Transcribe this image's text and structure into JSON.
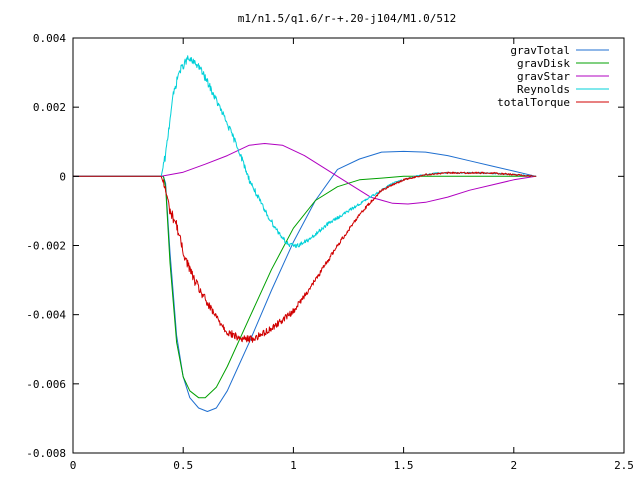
{
  "chart_data": {
    "type": "line",
    "title": "m1/n1.5/q1.6/r-+.20-j104/M1.0/512",
    "xlabel": "",
    "ylabel": "",
    "xlim": [
      0,
      2.5
    ],
    "ylim": [
      -0.008,
      0.004
    ],
    "x_ticks": [
      {
        "value": 0,
        "label": "0"
      },
      {
        "value": 0.5,
        "label": "0.5"
      },
      {
        "value": 1,
        "label": "1"
      },
      {
        "value": 1.5,
        "label": "1.5"
      },
      {
        "value": 2,
        "label": "2"
      },
      {
        "value": 2.5,
        "label": "2.5"
      }
    ],
    "y_ticks": [
      {
        "value": 0.004,
        "label": "0.004"
      },
      {
        "value": 0.002,
        "label": "0.002"
      },
      {
        "value": 0,
        "label": "0"
      },
      {
        "value": -0.002,
        "label": "-0.002"
      },
      {
        "value": -0.004,
        "label": "-0.004"
      },
      {
        "value": -0.006,
        "label": "-0.006"
      },
      {
        "value": -0.008,
        "label": "-0.008"
      }
    ],
    "grid": false,
    "legend_position": "top-right",
    "series": [
      {
        "name": "gravTotal",
        "color": "#1f6fd0",
        "noise": 0,
        "points": [
          [
            0,
            0
          ],
          [
            0.41,
            0
          ],
          [
            0.42,
            -0.0002
          ],
          [
            0.44,
            -0.0022
          ],
          [
            0.47,
            -0.0046
          ],
          [
            0.5,
            -0.0058
          ],
          [
            0.53,
            -0.0064
          ],
          [
            0.57,
            -0.0067
          ],
          [
            0.61,
            -0.0068
          ],
          [
            0.65,
            -0.0067
          ],
          [
            0.7,
            -0.0062
          ],
          [
            0.75,
            -0.0055
          ],
          [
            0.8,
            -0.0048
          ],
          [
            0.9,
            -0.0033
          ],
          [
            1.0,
            -0.0019
          ],
          [
            1.1,
            -0.0007
          ],
          [
            1.2,
            0.0002
          ],
          [
            1.3,
            0.0005
          ],
          [
            1.4,
            0.0007
          ],
          [
            1.5,
            0.00072
          ],
          [
            1.6,
            0.0007
          ],
          [
            1.7,
            0.0006
          ],
          [
            1.8,
            0.00045
          ],
          [
            1.9,
            0.0003
          ],
          [
            2.0,
            0.00015
          ],
          [
            2.1,
            0
          ]
        ]
      },
      {
        "name": "gravDisk",
        "color": "#00a000",
        "noise": 0,
        "points": [
          [
            0,
            0
          ],
          [
            0.41,
            0
          ],
          [
            0.42,
            -0.0003
          ],
          [
            0.44,
            -0.0025
          ],
          [
            0.47,
            -0.0048
          ],
          [
            0.5,
            -0.0058
          ],
          [
            0.53,
            -0.0062
          ],
          [
            0.57,
            -0.0064
          ],
          [
            0.6,
            -0.0064
          ],
          [
            0.65,
            -0.0061
          ],
          [
            0.7,
            -0.0055
          ],
          [
            0.8,
            -0.0041
          ],
          [
            0.9,
            -0.0027
          ],
          [
            1.0,
            -0.0015
          ],
          [
            1.1,
            -0.0007
          ],
          [
            1.2,
            -0.0003
          ],
          [
            1.3,
            -0.0001
          ],
          [
            1.4,
            -5e-05
          ],
          [
            1.5,
            0
          ],
          [
            1.7,
            0
          ],
          [
            1.9,
            0
          ],
          [
            2.1,
            0
          ]
        ]
      },
      {
        "name": "gravStar",
        "color": "#b000c0",
        "noise": 0,
        "points": [
          [
            0,
            0
          ],
          [
            0.4,
            0
          ],
          [
            0.5,
            0.00012
          ],
          [
            0.6,
            0.00035
          ],
          [
            0.7,
            0.0006
          ],
          [
            0.8,
            0.0009
          ],
          [
            0.87,
            0.00095
          ],
          [
            0.95,
            0.0009
          ],
          [
            1.05,
            0.0006
          ],
          [
            1.15,
            0.0002
          ],
          [
            1.25,
            -0.0002
          ],
          [
            1.35,
            -0.0006
          ],
          [
            1.45,
            -0.00078
          ],
          [
            1.52,
            -0.0008
          ],
          [
            1.6,
            -0.00075
          ],
          [
            1.7,
            -0.0006
          ],
          [
            1.8,
            -0.0004
          ],
          [
            1.9,
            -0.00025
          ],
          [
            2.0,
            -0.0001
          ],
          [
            2.1,
            0
          ]
        ]
      },
      {
        "name": "Reynolds",
        "color": "#00d0d8",
        "noise": 0.00012,
        "points": [
          [
            0,
            0
          ],
          [
            0.4,
            0
          ],
          [
            0.42,
            0.0006
          ],
          [
            0.45,
            0.0022
          ],
          [
            0.48,
            0.003
          ],
          [
            0.52,
            0.0034
          ],
          [
            0.57,
            0.0032
          ],
          [
            0.62,
            0.0026
          ],
          [
            0.68,
            0.0018
          ],
          [
            0.75,
            0.0008
          ],
          [
            0.8,
            -0.0001
          ],
          [
            0.87,
            -0.001
          ],
          [
            0.93,
            -0.0016
          ],
          [
            0.98,
            -0.002
          ],
          [
            1.02,
            -0.002
          ],
          [
            1.08,
            -0.0018
          ],
          [
            1.15,
            -0.0014
          ],
          [
            1.25,
            -0.001
          ],
          [
            1.35,
            -0.0006
          ],
          [
            1.45,
            -0.0002
          ],
          [
            1.55,
            0
          ],
          [
            1.65,
            0.0001
          ],
          [
            1.75,
            0.0001
          ],
          [
            1.85,
            0.0001
          ],
          [
            2.0,
            5e-05
          ],
          [
            2.1,
            0
          ]
        ]
      },
      {
        "name": "totalTorque",
        "color": "#d00000",
        "noise": 0.00015,
        "points": [
          [
            0,
            0
          ],
          [
            0.4,
            0
          ],
          [
            0.42,
            -0.0004
          ],
          [
            0.44,
            -0.001
          ],
          [
            0.47,
            -0.0014
          ],
          [
            0.5,
            -0.0022
          ],
          [
            0.55,
            -0.003
          ],
          [
            0.62,
            -0.0038
          ],
          [
            0.7,
            -0.0045
          ],
          [
            0.76,
            -0.0047
          ],
          [
            0.82,
            -0.0047
          ],
          [
            0.9,
            -0.0044
          ],
          [
            1.0,
            -0.0039
          ],
          [
            1.1,
            -0.003
          ],
          [
            1.2,
            -0.002
          ],
          [
            1.3,
            -0.0011
          ],
          [
            1.4,
            -0.0004
          ],
          [
            1.5,
            -0.0001
          ],
          [
            1.6,
            5e-05
          ],
          [
            1.7,
            0.0001
          ],
          [
            1.8,
            0.0001
          ],
          [
            1.9,
            0.0001
          ],
          [
            2.0,
            5e-05
          ],
          [
            2.1,
            0
          ]
        ]
      }
    ]
  }
}
